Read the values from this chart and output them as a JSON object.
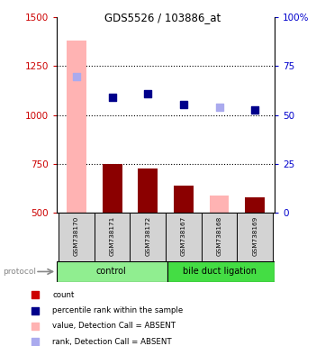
{
  "title": "GDS5526 / 103886_at",
  "samples": [
    "GSM738170",
    "GSM738171",
    "GSM738172",
    "GSM738167",
    "GSM738168",
    "GSM738169"
  ],
  "bar_values": [
    1380,
    750,
    725,
    640,
    590,
    580
  ],
  "bar_colors": [
    "#ffb3b3",
    "#8b0000",
    "#8b0000",
    "#8b0000",
    "#ffb3b3",
    "#8b0000"
  ],
  "dot_values": [
    1195,
    1090,
    1108,
    1055,
    1042,
    1028
  ],
  "dot_colors": [
    "#aaaaee",
    "#00008b",
    "#00008b",
    "#00008b",
    "#aaaaee",
    "#00008b"
  ],
  "ylim_left": [
    500,
    1500
  ],
  "ylim_right": [
    0,
    100
  ],
  "yticks_left": [
    500,
    750,
    1000,
    1250,
    1500
  ],
  "yticks_right": [
    0,
    25,
    50,
    75,
    100
  ],
  "ytick_labels_right": [
    "0",
    "25",
    "50",
    "75",
    "100%"
  ],
  "ctrl_color": "#90ee90",
  "bdl_color": "#44dd44",
  "bar_width": 0.55,
  "dotsize": 40,
  "legend_colors": [
    "#cc0000",
    "#00008b",
    "#ffb3b3",
    "#aaaaee"
  ],
  "legend_labels": [
    "count",
    "percentile rank within the sample",
    "value, Detection Call = ABSENT",
    "rank, Detection Call = ABSENT"
  ]
}
